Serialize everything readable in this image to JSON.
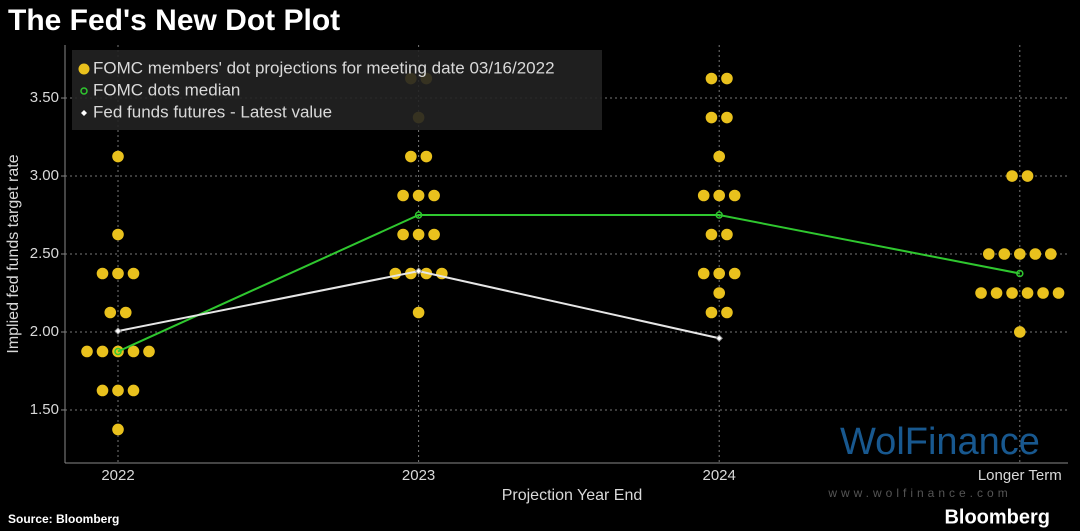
{
  "chart_data": {
    "type": "dot",
    "title": "The Fed's New Dot Plot",
    "x_label": "Projection Year End",
    "y_label": "Implied fed funds target rate",
    "source": "Source: Bloomberg",
    "brand": "Bloomberg",
    "categories": [
      "2022",
      "2023",
      "2024",
      "Longer Term"
    ],
    "series": [
      {
        "name": "FOMC members' dot projections for meeting date 03/16/2022",
        "color": "#e9c11d",
        "values": [
          [
            3.125,
            2.625,
            2.375,
            2.375,
            2.375,
            2.125,
            2.125,
            1.875,
            1.875,
            1.875,
            1.875,
            1.875,
            1.625,
            1.625,
            1.625,
            1.375
          ],
          [
            3.625,
            3.625,
            3.375,
            3.125,
            3.125,
            2.875,
            2.875,
            2.875,
            2.625,
            2.625,
            2.625,
            2.375,
            2.375,
            2.375,
            2.375,
            2.125
          ],
          [
            3.625,
            3.625,
            3.375,
            3.375,
            3.125,
            2.875,
            2.875,
            2.875,
            2.625,
            2.625,
            2.375,
            2.375,
            2.375,
            2.25,
            2.125,
            2.125
          ],
          [
            3.0,
            3.0,
            2.5,
            2.5,
            2.5,
            2.5,
            2.5,
            2.25,
            2.25,
            2.25,
            2.25,
            2.25,
            2.25,
            2.0
          ]
        ]
      },
      {
        "name": "FOMC dots median",
        "color": "#2fc72f",
        "values": [
          1.875,
          2.75,
          2.75,
          2.375
        ]
      },
      {
        "name": "Fed funds futures - Latest value",
        "color": "#e6e6e6",
        "values": [
          2.006,
          2.39,
          1.96,
          null
        ]
      }
    ],
    "ylim": [
      1.16,
      3.84
    ],
    "yticks": [
      {
        "value": 1.5,
        "label": "1.50"
      },
      {
        "value": 2.0,
        "label": "2.00"
      },
      {
        "value": 2.5,
        "label": "2.50"
      },
      {
        "value": 3.0,
        "label": "3.00"
      },
      {
        "value": 3.5,
        "label": "3.50"
      }
    ],
    "grid": true,
    "legend": "top-left"
  },
  "watermark": {
    "name": "WolFinance",
    "url": "www.wolfinance.com"
  }
}
